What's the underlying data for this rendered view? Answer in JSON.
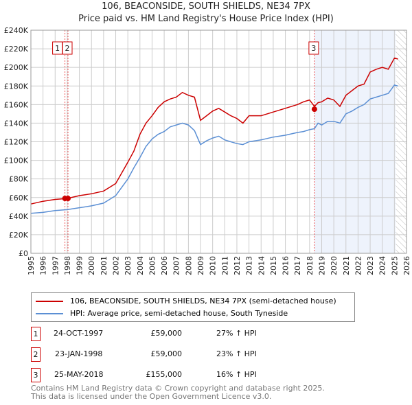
{
  "chart_data": {
    "type": "line",
    "title": "106, BEACONSIDE, SOUTH SHIELDS, NE34 7PX",
    "subtitle": "Price paid vs. HM Land Registry's House Price Index (HPI)",
    "xlim": [
      1995,
      2026
    ],
    "ylim": [
      0,
      240000
    ],
    "x_ticks": [
      "1995",
      "1996",
      "1997",
      "1998",
      "1999",
      "2000",
      "2001",
      "2002",
      "2003",
      "2004",
      "2005",
      "2006",
      "2007",
      "2008",
      "2009",
      "2010",
      "2011",
      "2012",
      "2013",
      "2014",
      "2015",
      "2016",
      "2017",
      "2018",
      "2019",
      "2020",
      "2021",
      "2022",
      "2023",
      "2024",
      "2025",
      "2026"
    ],
    "y_ticks": [
      "£0",
      "£20K",
      "£40K",
      "£60K",
      "£80K",
      "£100K",
      "£120K",
      "£140K",
      "£160K",
      "£180K",
      "£200K",
      "£220K",
      "£240K"
    ],
    "grid": true,
    "series": [
      {
        "name": "106, BEACONSIDE, SOUTH SHIELDS, NE34 7PX (semi-detached house)",
        "color": "#cc0000",
        "x": [
          1995,
          1996,
          1997,
          1998,
          1999,
          2000,
          2001,
          2002,
          2003,
          2003.5,
          2004,
          2004.5,
          2005,
          2005.5,
          2006,
          2006.5,
          2007,
          2007.5,
          2008,
          2008.5,
          2009,
          2009.5,
          2010,
          2010.5,
          2011,
          2011.5,
          2012,
          2012.5,
          2013,
          2014,
          2015,
          2016,
          2017,
          2017.5,
          2018,
          2018.4,
          2018.7,
          2019,
          2019.5,
          2020,
          2020.5,
          2021,
          2021.5,
          2022,
          2022.5,
          2023,
          2023.5,
          2024,
          2024.5,
          2025,
          2025.3
        ],
        "y": [
          53000,
          56000,
          58000,
          59000,
          62000,
          64000,
          67000,
          75000,
          98000,
          110000,
          128000,
          140000,
          148000,
          157000,
          163000,
          166000,
          168000,
          173000,
          170000,
          168000,
          143000,
          148000,
          153000,
          156000,
          152000,
          148000,
          145000,
          140000,
          148000,
          148000,
          152000,
          156000,
          160000,
          163000,
          165000,
          158000,
          162000,
          163000,
          167000,
          165000,
          158000,
          170000,
          175000,
          180000,
          182000,
          195000,
          198000,
          200000,
          198000,
          210000,
          209000
        ]
      },
      {
        "name": "HPI: Average price, semi-detached house, South Tyneside",
        "color": "#5b8fd4",
        "x": [
          1995,
          1996,
          1997,
          1998,
          1999,
          2000,
          2001,
          2002,
          2003,
          2003.5,
          2004,
          2004.5,
          2005,
          2005.5,
          2006,
          2006.5,
          2007,
          2007.5,
          2008,
          2008.5,
          2009,
          2009.5,
          2010,
          2010.5,
          2011,
          2011.5,
          2012,
          2012.5,
          2013,
          2014,
          2015,
          2016,
          2017,
          2017.5,
          2018,
          2018.4,
          2018.7,
          2019,
          2019.5,
          2020,
          2020.5,
          2021,
          2021.5,
          2022,
          2022.5,
          2023,
          2023.5,
          2024,
          2024.5,
          2025,
          2025.3
        ],
        "y": [
          43000,
          44000,
          46000,
          47000,
          49000,
          51000,
          54000,
          62000,
          80000,
          92000,
          103000,
          115000,
          123000,
          128000,
          131000,
          136000,
          138000,
          140000,
          138000,
          132000,
          117000,
          121000,
          124000,
          126000,
          122000,
          120000,
          118000,
          117000,
          120000,
          122000,
          125000,
          127000,
          130000,
          131000,
          133000,
          134000,
          140000,
          138000,
          142000,
          142000,
          140000,
          150000,
          153000,
          157000,
          160000,
          166000,
          168000,
          170000,
          172000,
          181000,
          180000
        ]
      }
    ],
    "sales": [
      {
        "label": "1",
        "x": 1997.81,
        "y": 59000
      },
      {
        "label": "2",
        "x": 1998.06,
        "y": 59000
      },
      {
        "label": "3",
        "x": 2018.4,
        "y": 155000
      }
    ],
    "shaded_range": [
      2018.4,
      2025.1
    ],
    "hatched_from": 2025.1
  },
  "legend": [
    "106, BEACONSIDE, SOUTH SHIELDS, NE34 7PX (semi-detached house)",
    "HPI: Average price, semi-detached house, South Tyneside"
  ],
  "transactions": [
    {
      "num": "1",
      "date": "24-OCT-1997",
      "price": "£59,000",
      "hpi": "27% ↑ HPI"
    },
    {
      "num": "2",
      "date": "23-JAN-1998",
      "price": "£59,000",
      "hpi": "23% ↑ HPI"
    },
    {
      "num": "3",
      "date": "25-MAY-2018",
      "price": "£155,000",
      "hpi": "16% ↑ HPI"
    }
  ],
  "footer": [
    "Contains HM Land Registry data © Crown copyright and database right 2025.",
    "This data is licensed under the Open Government Licence v3.0."
  ]
}
